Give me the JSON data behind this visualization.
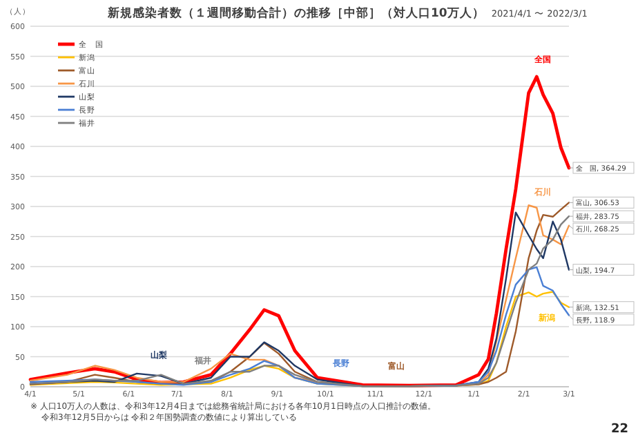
{
  "chart_data": {
    "type": "line",
    "title": "新規感染者数（１週間移動合計）の推移［中部］（対人口10万人）",
    "subtitle": "2021/4/1 〜 2022/3/1",
    "ylabel": "（人）",
    "x": [
      "2021-04-01",
      "2021-04-24",
      "2021-05-11",
      "2021-05-23",
      "2021-06-06",
      "2021-06-21",
      "2021-07-05",
      "2021-07-22",
      "2021-08-03",
      "2021-08-15",
      "2021-08-24",
      "2021-09-02",
      "2021-09-12",
      "2021-09-26",
      "2021-10-24",
      "2021-11-22",
      "2021-12-21",
      "2022-01-04",
      "2022-01-10",
      "2022-01-15",
      "2022-01-21",
      "2022-01-27",
      "2022-02-04",
      "2022-02-09",
      "2022-02-13",
      "2022-02-19",
      "2022-02-24",
      "2022-03-01"
    ],
    "series": [
      {
        "name": "全　国",
        "color": "#ff0000",
        "values": [
          12,
          23,
          30,
          25,
          12,
          7,
          8,
          20,
          55,
          95,
          128,
          118,
          60,
          15,
          3,
          2,
          3,
          20,
          46,
          122,
          229,
          329,
          489,
          516,
          486,
          455,
          398,
          364.29
        ],
        "value_labels": [
          null,
          null,
          null,
          null,
          null,
          null,
          null,
          null,
          null,
          null,
          null,
          null,
          null,
          null,
          null,
          null,
          null,
          null,
          null,
          null,
          null,
          null,
          null,
          null,
          null,
          null,
          null,
          "全　国, 364.29"
        ]
      },
      {
        "name": "新潟",
        "color": "#ffc000",
        "values": [
          3,
          6,
          8,
          7,
          5,
          3,
          4,
          5,
          15,
          28,
          35,
          30,
          15,
          5,
          1,
          1,
          2,
          4,
          10,
          40,
          100,
          150,
          157,
          150,
          155,
          158,
          140,
          132.51
        ],
        "value_labels": [
          null,
          null,
          null,
          null,
          null,
          null,
          null,
          null,
          null,
          null,
          null,
          null,
          null,
          null,
          null,
          null,
          null,
          null,
          null,
          null,
          null,
          null,
          null,
          null,
          null,
          null,
          null,
          "新潟, 132.51"
        ]
      },
      {
        "name": "富山",
        "color": "#9e5a2a",
        "values": [
          4,
          8,
          20,
          15,
          8,
          5,
          5,
          8,
          25,
          50,
          73,
          55,
          25,
          8,
          1,
          1,
          2,
          4,
          8,
          15,
          25,
          92,
          214,
          260,
          286,
          283,
          295,
          306.53
        ],
        "value_labels": [
          null,
          null,
          null,
          null,
          null,
          null,
          null,
          null,
          null,
          null,
          null,
          null,
          null,
          null,
          null,
          null,
          null,
          null,
          null,
          null,
          null,
          null,
          null,
          null,
          null,
          null,
          null,
          "富山, 306.53"
        ]
      },
      {
        "name": "石川",
        "color": "#f79646",
        "values": [
          10,
          20,
          35,
          28,
          15,
          8,
          8,
          30,
          55,
          45,
          45,
          35,
          15,
          8,
          1,
          1,
          2,
          5,
          20,
          76,
          145,
          214,
          302,
          298,
          252,
          245,
          237,
          268.25
        ],
        "value_labels": [
          null,
          null,
          null,
          null,
          null,
          null,
          null,
          null,
          null,
          null,
          null,
          null,
          null,
          null,
          null,
          null,
          null,
          null,
          null,
          null,
          null,
          null,
          null,
          null,
          null,
          null,
          null,
          "石川, 268.25"
        ]
      },
      {
        "name": "山梨",
        "color": "#1f3864",
        "values": [
          5,
          8,
          10,
          8,
          22,
          18,
          5,
          15,
          50,
          50,
          74,
          60,
          35,
          12,
          1,
          1,
          2,
          8,
          30,
          80,
          180,
          290,
          252,
          229,
          214,
          275,
          245,
          194.7
        ],
        "value_labels": [
          null,
          null,
          null,
          null,
          null,
          null,
          null,
          null,
          null,
          null,
          null,
          null,
          null,
          null,
          null,
          null,
          null,
          null,
          null,
          null,
          null,
          null,
          null,
          null,
          null,
          null,
          null,
          "山梨, 194.7"
        ]
      },
      {
        "name": "長野",
        "color": "#4a7fd4",
        "values": [
          8,
          10,
          12,
          10,
          8,
          5,
          3,
          8,
          20,
          30,
          43,
          35,
          15,
          5,
          1,
          1,
          2,
          8,
          25,
          60,
          120,
          170,
          195,
          199,
          168,
          160,
          138,
          118.9
        ],
        "value_labels": [
          null,
          null,
          null,
          null,
          null,
          null,
          null,
          null,
          null,
          null,
          null,
          null,
          null,
          null,
          null,
          null,
          null,
          null,
          null,
          null,
          null,
          null,
          null,
          null,
          null,
          null,
          null,
          "長野, 118.9"
        ]
      },
      {
        "name": "福井",
        "color": "#7f7f7f",
        "values": [
          5,
          8,
          12,
          10,
          10,
          20,
          5,
          10,
          25,
          25,
          35,
          35,
          20,
          8,
          1,
          1,
          2,
          5,
          15,
          40,
          90,
          140,
          195,
          205,
          230,
          245,
          270,
          283.75
        ],
        "value_labels": [
          null,
          null,
          null,
          null,
          null,
          null,
          null,
          null,
          null,
          null,
          null,
          null,
          null,
          null,
          null,
          null,
          null,
          null,
          null,
          null,
          null,
          null,
          null,
          null,
          null,
          null,
          null,
          "福井, 283.75"
        ]
      }
    ],
    "xlim": [
      "2021-04-01",
      "2022-03-01"
    ],
    "xticks": [
      {
        "value": "2021-04-01",
        "label": "4/1"
      },
      {
        "value": "2021-05-01",
        "label": "5/1"
      },
      {
        "value": "2021-06-01",
        "label": "6/1"
      },
      {
        "value": "2021-07-01",
        "label": "7/1"
      },
      {
        "value": "2021-08-01",
        "label": "8/1"
      },
      {
        "value": "2021-09-01",
        "label": "9/1"
      },
      {
        "value": "2021-10-01",
        "label": "10/1"
      },
      {
        "value": "2021-11-01",
        "label": "11/1"
      },
      {
        "value": "2021-12-01",
        "label": "12/1"
      },
      {
        "value": "2022-01-01",
        "label": "1/1"
      },
      {
        "value": "2022-02-01",
        "label": "2/1"
      },
      {
        "value": "2022-03-01",
        "label": "3/1"
      }
    ],
    "ylim": [
      0,
      600
    ],
    "yticks": [
      0,
      50,
      100,
      150,
      200,
      250,
      300,
      350,
      400,
      450,
      500,
      550,
      600
    ],
    "grid": "y",
    "legend": "top left",
    "marker": "none",
    "line_style": "solid",
    "annotations": [
      "全国",
      "石川",
      "新潟",
      "山梨",
      "福井",
      "長野",
      "富山",
      "※ 人口10万人の人数は、令和3年12月4日までは総務省統計局における各年10月1日時点の人口推計の数値。",
      "令和3年12月5日からは 令和２年国勢調査の数値により算出している",
      "22"
    ]
  }
}
